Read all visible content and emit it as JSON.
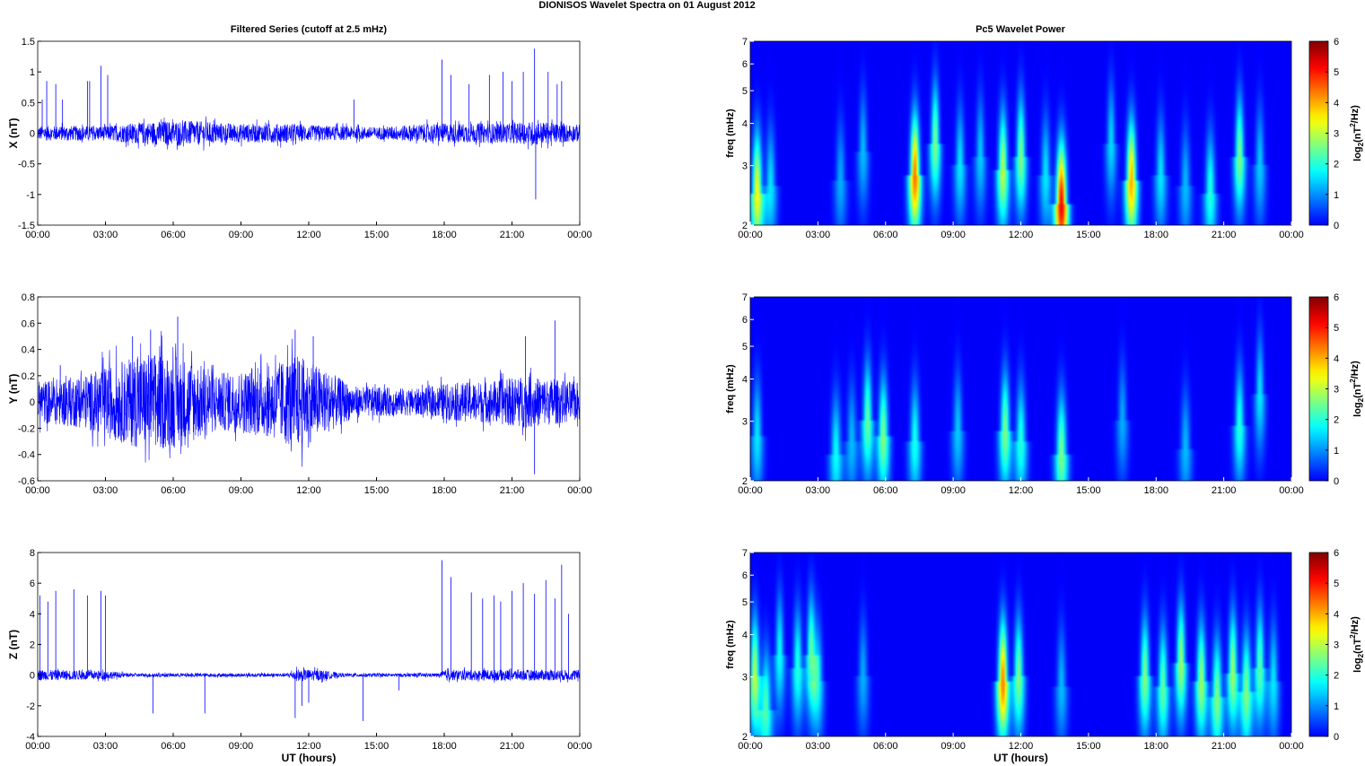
{
  "figure": {
    "suptitle": "DIONISOS Wavelet Spectra on 01 August    2012",
    "left_title": "Filtered Series (cutoff at 2.5 mHz)",
    "right_title": "Pc5 Wavelet Power"
  },
  "chart_data": [
    {
      "type": "line",
      "component": "X",
      "ylabel": "X (nT)",
      "xlabel": "",
      "x_ticks": [
        "00:00",
        "03:00",
        "06:00",
        "09:00",
        "12:00",
        "15:00",
        "18:00",
        "21:00",
        "00:00"
      ],
      "xlim_hours": [
        0,
        24
      ],
      "ylim": [
        -1.5,
        1.5
      ],
      "y_ticks": [
        "1.5",
        "1",
        "0.5",
        "0",
        "-0.5",
        "-1",
        "-1.5"
      ],
      "y_tick_values": [
        1.5,
        1,
        0.5,
        0,
        -0.5,
        -1,
        -1.5
      ],
      "color": "#0000ff",
      "noise_envelope": [
        [
          0,
          0.12
        ],
        [
          1,
          0.12
        ],
        [
          3,
          0.12
        ],
        [
          4,
          0.16
        ],
        [
          5.5,
          0.2
        ],
        [
          7,
          0.2
        ],
        [
          9,
          0.15
        ],
        [
          11,
          0.16
        ],
        [
          12,
          0.13
        ],
        [
          15,
          0.1
        ],
        [
          17,
          0.15
        ],
        [
          18,
          0.16
        ],
        [
          21,
          0.16
        ],
        [
          22,
          0.2
        ],
        [
          23,
          0.16
        ],
        [
          24,
          0.14
        ]
      ],
      "spikes": [
        [
          0.2,
          0.55
        ],
        [
          0.4,
          0.85
        ],
        [
          0.8,
          0.8
        ],
        [
          1.1,
          0.55
        ],
        [
          2.2,
          0.85
        ],
        [
          2.3,
          0.85
        ],
        [
          2.8,
          1.1
        ],
        [
          3.1,
          0.95
        ],
        [
          14.0,
          0.55
        ],
        [
          17.9,
          1.2
        ],
        [
          18.3,
          0.95
        ],
        [
          19.1,
          0.8
        ],
        [
          20.0,
          0.95
        ],
        [
          20.6,
          1.0
        ],
        [
          21.0,
          0.85
        ],
        [
          21.5,
          1.0
        ],
        [
          22.0,
          1.38
        ],
        [
          22.05,
          -1.08
        ],
        [
          22.6,
          1.0
        ],
        [
          23.0,
          0.8
        ],
        [
          23.2,
          0.85
        ]
      ]
    },
    {
      "type": "line",
      "component": "Y",
      "ylabel": "Y (nT)",
      "xlabel": "",
      "x_ticks": [
        "00:00",
        "03:00",
        "06:00",
        "09:00",
        "12:00",
        "15:00",
        "18:00",
        "21:00",
        "00:00"
      ],
      "xlim_hours": [
        0,
        24
      ],
      "ylim": [
        -0.6,
        0.8
      ],
      "y_ticks": [
        "0.8",
        "0.6",
        "0.4",
        "0.2",
        "0",
        "-0.2",
        "-0.4",
        "-0.6"
      ],
      "y_tick_values": [
        0.8,
        0.6,
        0.4,
        0.2,
        0,
        -0.2,
        -0.4,
        -0.6
      ],
      "color": "#0000ff",
      "noise_envelope": [
        [
          0,
          0.16
        ],
        [
          2,
          0.2
        ],
        [
          3.5,
          0.3
        ],
        [
          5,
          0.38
        ],
        [
          6.5,
          0.34
        ],
        [
          8,
          0.22
        ],
        [
          10,
          0.26
        ],
        [
          11.5,
          0.36
        ],
        [
          13,
          0.22
        ],
        [
          14,
          0.12
        ],
        [
          17,
          0.1
        ],
        [
          18,
          0.14
        ],
        [
          20,
          0.16
        ],
        [
          21.5,
          0.2
        ],
        [
          24,
          0.15
        ]
      ],
      "spikes": [
        [
          1.0,
          0.28
        ],
        [
          4.2,
          0.5
        ],
        [
          5.0,
          0.55
        ],
        [
          6.2,
          0.65
        ],
        [
          11.4,
          0.55
        ],
        [
          12.2,
          0.5
        ],
        [
          21.6,
          0.5
        ],
        [
          22.0,
          -0.55
        ],
        [
          22.9,
          0.62
        ]
      ]
    },
    {
      "type": "line",
      "component": "Z",
      "ylabel": "Z (nT)",
      "xlabel": "UT (hours)",
      "x_ticks": [
        "00:00",
        "03:00",
        "06:00",
        "09:00",
        "12:00",
        "15:00",
        "18:00",
        "21:00",
        "00:00"
      ],
      "xlim_hours": [
        0,
        24
      ],
      "ylim": [
        -4,
        8
      ],
      "y_ticks": [
        "8",
        "6",
        "4",
        "2",
        "0",
        "-2",
        "-4"
      ],
      "y_tick_values": [
        8,
        6,
        4,
        2,
        0,
        -2,
        -4
      ],
      "color": "#0000ff",
      "noise_envelope": [
        [
          0,
          0.35
        ],
        [
          3,
          0.3
        ],
        [
          4,
          0.12
        ],
        [
          11,
          0.12
        ],
        [
          11.5,
          0.4
        ],
        [
          12.5,
          0.35
        ],
        [
          13.5,
          0.12
        ],
        [
          17.8,
          0.12
        ],
        [
          18,
          0.35
        ],
        [
          24,
          0.35
        ]
      ],
      "spikes": [
        [
          0.1,
          5.2
        ],
        [
          0.45,
          4.8
        ],
        [
          0.8,
          5.5
        ],
        [
          1.6,
          5.6
        ],
        [
          2.2,
          5.2
        ],
        [
          2.8,
          5.5
        ],
        [
          3.0,
          5.2
        ],
        [
          5.1,
          -2.5
        ],
        [
          7.4,
          -2.5
        ],
        [
          11.4,
          -2.8
        ],
        [
          11.7,
          -2.0
        ],
        [
          12.0,
          -1.8
        ],
        [
          14.4,
          -3.0
        ],
        [
          16.0,
          -1.0
        ],
        [
          17.9,
          7.5
        ],
        [
          18.3,
          6.4
        ],
        [
          19.2,
          5.4
        ],
        [
          19.7,
          5.0
        ],
        [
          20.2,
          5.2
        ],
        [
          20.5,
          4.8
        ],
        [
          21.0,
          5.5
        ],
        [
          21.5,
          6.0
        ],
        [
          22.0,
          5.3
        ],
        [
          22.5,
          6.2
        ],
        [
          22.9,
          5.0
        ],
        [
          23.2,
          7.2
        ],
        [
          23.5,
          4.0
        ]
      ]
    },
    {
      "type": "heatmap",
      "component": "X",
      "ylabel": "freq (mHz)",
      "xlabel": "",
      "x_ticks": [
        "00:00",
        "03:00",
        "06:00",
        "09:00",
        "12:00",
        "15:00",
        "18:00",
        "21:00",
        "00:00"
      ],
      "xlim_hours": [
        0,
        24
      ],
      "y_ticks": [
        "7",
        "6",
        "5",
        "4",
        "3",
        "2"
      ],
      "freq_values_mHz": [
        7,
        6,
        5,
        4,
        3,
        2
      ],
      "ylim_mHz": [
        2,
        7
      ],
      "y_scale": "log",
      "colorbar_label": "log2(nT2/Hz)",
      "colorbar_ticks": [
        "6",
        "5",
        "4",
        "3",
        "2",
        "1",
        "0"
      ],
      "clim": [
        0,
        6
      ],
      "colormap": "jet",
      "bursts": [
        [
          0.3,
          2.5,
          3.4
        ],
        [
          0.9,
          2.6,
          1.6
        ],
        [
          4.0,
          2.7,
          1.2
        ],
        [
          5.0,
          3.3,
          1.3
        ],
        [
          7.3,
          2.8,
          4.4
        ],
        [
          8.2,
          3.5,
          2.6
        ],
        [
          9.3,
          3.0,
          1.6
        ],
        [
          10.2,
          3.2,
          1.4
        ],
        [
          11.2,
          2.9,
          3.0
        ],
        [
          12.0,
          3.2,
          2.6
        ],
        [
          13.1,
          2.8,
          1.6
        ],
        [
          13.8,
          2.3,
          5.2
        ],
        [
          16.0,
          3.5,
          1.5
        ],
        [
          16.9,
          2.7,
          4.0
        ],
        [
          18.2,
          2.8,
          1.6
        ],
        [
          19.3,
          2.6,
          1.3
        ],
        [
          20.4,
          2.5,
          2.0
        ],
        [
          21.7,
          3.2,
          2.6
        ],
        [
          22.6,
          3.0,
          1.4
        ]
      ]
    },
    {
      "type": "heatmap",
      "component": "Y",
      "ylabel": "freq (mHz)",
      "xlabel": "",
      "x_ticks": [
        "00:00",
        "03:00",
        "06:00",
        "09:00",
        "12:00",
        "15:00",
        "18:00",
        "21:00",
        "00:00"
      ],
      "xlim_hours": [
        0,
        24
      ],
      "y_ticks": [
        "7",
        "6",
        "5",
        "4",
        "3",
        "2"
      ],
      "freq_values_mHz": [
        7,
        6,
        5,
        4,
        3,
        2
      ],
      "ylim_mHz": [
        2,
        7
      ],
      "y_scale": "log",
      "colorbar_label": "log2(nT2/Hz)",
      "colorbar_ticks": [
        "6",
        "5",
        "4",
        "3",
        "2",
        "1",
        "0"
      ],
      "clim": [
        0,
        6
      ],
      "colormap": "jet",
      "bursts": [
        [
          0.3,
          2.7,
          1.6
        ],
        [
          3.8,
          2.4,
          1.8
        ],
        [
          4.5,
          2.6,
          1.3
        ],
        [
          5.2,
          3.0,
          2.4
        ],
        [
          5.9,
          2.7,
          2.6
        ],
        [
          7.3,
          2.6,
          1.9
        ],
        [
          9.2,
          2.8,
          1.4
        ],
        [
          11.3,
          2.8,
          2.6
        ],
        [
          12.0,
          2.6,
          2.0
        ],
        [
          13.8,
          2.4,
          2.6
        ],
        [
          16.5,
          3.0,
          1.2
        ],
        [
          19.3,
          2.5,
          1.3
        ],
        [
          21.7,
          2.9,
          2.0
        ],
        [
          22.6,
          3.6,
          1.6
        ]
      ]
    },
    {
      "type": "heatmap",
      "component": "Z",
      "ylabel": "freq (mHz)",
      "xlabel": "UT (hours)",
      "x_ticks": [
        "00:00",
        "03:00",
        "06:00",
        "09:00",
        "12:00",
        "15:00",
        "18:00",
        "21:00",
        "00:00"
      ],
      "xlim_hours": [
        0,
        24
      ],
      "y_ticks": [
        "7",
        "6",
        "5",
        "4",
        "3",
        "2"
      ],
      "freq_values_mHz": [
        7,
        6,
        5,
        4,
        3,
        2
      ],
      "ylim_mHz": [
        2,
        7
      ],
      "y_scale": "log",
      "colorbar_label": "log2(nT2/Hz)",
      "colorbar_ticks": [
        "6",
        "5",
        "4",
        "3",
        "2",
        "1",
        "0"
      ],
      "clim": [
        0,
        6
      ],
      "colormap": "jet",
      "bursts": [
        [
          0.2,
          3.0,
          3.0
        ],
        [
          0.7,
          2.4,
          2.2
        ],
        [
          1.3,
          3.5,
          1.8
        ],
        [
          2.1,
          3.2,
          2.0
        ],
        [
          2.7,
          3.5,
          2.4
        ],
        [
          3.0,
          2.9,
          1.6
        ],
        [
          5.0,
          3.0,
          1.2
        ],
        [
          11.2,
          2.9,
          4.3
        ],
        [
          11.9,
          3.0,
          2.6
        ],
        [
          13.8,
          2.8,
          1.3
        ],
        [
          17.5,
          3.0,
          2.6
        ],
        [
          18.3,
          2.8,
          2.4
        ],
        [
          19.1,
          3.3,
          2.8
        ],
        [
          20.0,
          2.9,
          2.8
        ],
        [
          20.7,
          2.6,
          2.6
        ],
        [
          21.4,
          3.1,
          2.8
        ],
        [
          22.0,
          2.7,
          2.6
        ],
        [
          22.6,
          3.2,
          2.4
        ],
        [
          23.2,
          2.9,
          1.6
        ]
      ]
    }
  ]
}
